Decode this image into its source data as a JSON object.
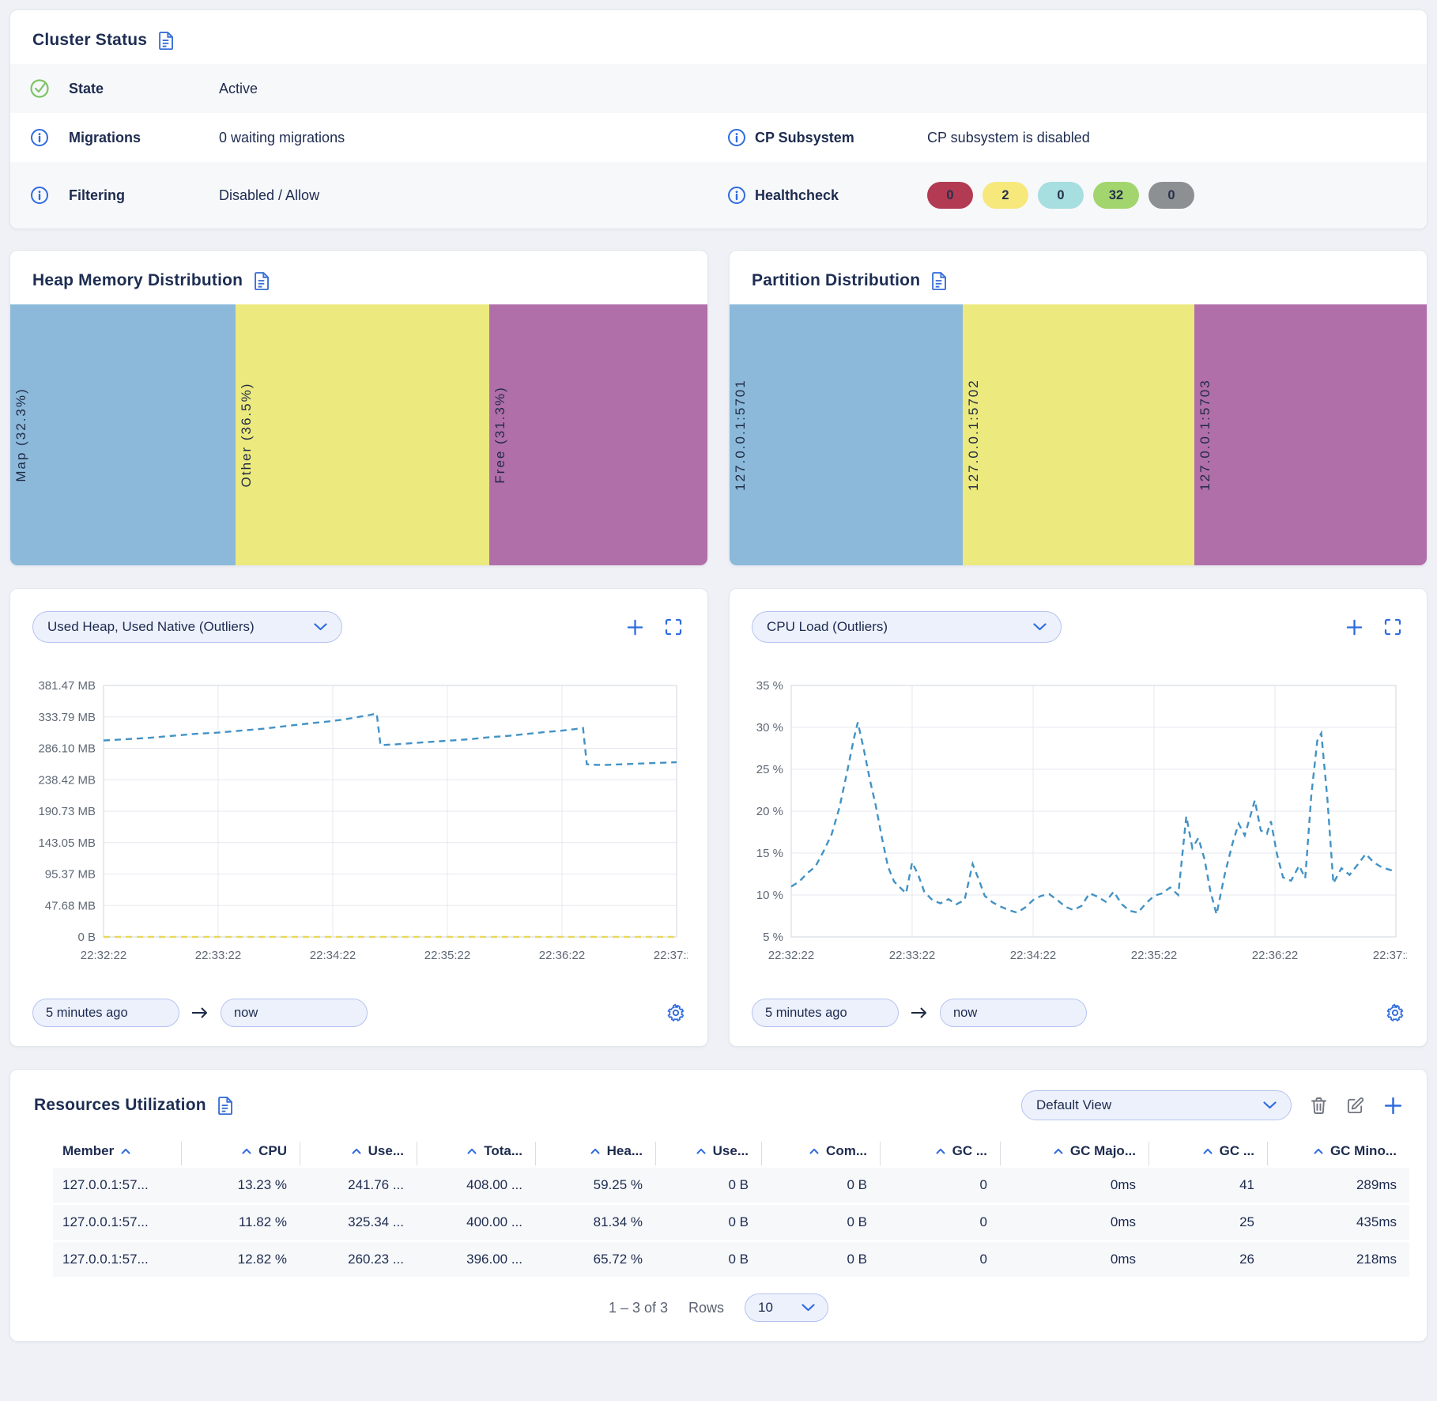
{
  "cluster_status": {
    "title": "Cluster Status",
    "state": {
      "label": "State",
      "value": "Active"
    },
    "migrations": {
      "label": "Migrations",
      "value": "0 waiting migrations"
    },
    "cp_subsystem": {
      "label": "CP Subsystem",
      "value": "CP subsystem is disabled"
    },
    "filtering": {
      "label": "Filtering",
      "value": "Disabled / Allow"
    },
    "healthcheck": {
      "label": "Healthcheck",
      "badges": [
        {
          "value": "0",
          "color": "#b23a53"
        },
        {
          "value": "2",
          "color": "#f6e87b"
        },
        {
          "value": "0",
          "color": "#a7dedf"
        },
        {
          "value": "32",
          "color": "#a3d56e"
        },
        {
          "value": "0",
          "color": "#8d9093"
        }
      ]
    }
  },
  "heap_distribution": {
    "title": "Heap Memory Distribution",
    "segments": [
      {
        "label": "Map (32.3%)",
        "pct": 32.3,
        "color": "#8cb9da"
      },
      {
        "label": "Other (36.5%)",
        "pct": 36.5,
        "color": "#ece97e"
      },
      {
        "label": "Free (31.3%)",
        "pct": 31.3,
        "color": "#b16fa9"
      }
    ]
  },
  "partition_distribution": {
    "title": "Partition Distribution",
    "segments": [
      {
        "label": "127.0.0.1:5701",
        "pct": 33.5,
        "color": "#8cb9da"
      },
      {
        "label": "127.0.0.1:5702",
        "pct": 33.2,
        "color": "#ece97e"
      },
      {
        "label": "127.0.0.1:5703",
        "pct": 33.3,
        "color": "#b16fa9"
      }
    ]
  },
  "charts": [
    {
      "selector": "Used Heap, Used Native (Outliers)",
      "from": "5 minutes ago",
      "to": "now",
      "y_ticks": [
        "381.47 MB",
        "333.79 MB",
        "286.10 MB",
        "238.42 MB",
        "190.73 MB",
        "143.05 MB",
        "95.37 MB",
        "47.68 MB",
        "0 B"
      ],
      "y_min": 0,
      "y_max": 381.47,
      "x_ticks": [
        "22:32:22",
        "22:33:22",
        "22:34:22",
        "22:35:22",
        "22:36:22",
        "22:37:22"
      ],
      "x_min": 0,
      "x_max": 300,
      "series": [
        {
          "name": "Used Heap",
          "color": "#4292c5",
          "points": [
            [
              0,
              298
            ],
            [
              12,
              300
            ],
            [
              24,
              302
            ],
            [
              36,
              305
            ],
            [
              48,
              308
            ],
            [
              60,
              310
            ],
            [
              72,
              313
            ],
            [
              84,
              316
            ],
            [
              96,
              320
            ],
            [
              108,
              324
            ],
            [
              118,
              327
            ],
            [
              126,
              330
            ],
            [
              134,
              334
            ],
            [
              140,
              337
            ],
            [
              143,
              339
            ],
            [
              145,
              291
            ],
            [
              152,
              292
            ],
            [
              162,
              294
            ],
            [
              172,
              296
            ],
            [
              182,
              298
            ],
            [
              192,
              300
            ],
            [
              202,
              303
            ],
            [
              212,
              305
            ],
            [
              222,
              308
            ],
            [
              232,
              311
            ],
            [
              240,
              313
            ],
            [
              246,
              315
            ],
            [
              251,
              317
            ],
            [
              253,
              262
            ],
            [
              258,
              261
            ],
            [
              264,
              261
            ],
            [
              272,
              262
            ],
            [
              280,
              263
            ],
            [
              290,
              264
            ],
            [
              300,
              265
            ]
          ]
        },
        {
          "name": "Used Native",
          "color": "#e8d95b",
          "points": [
            [
              0,
              0
            ],
            [
              300,
              0
            ]
          ]
        }
      ]
    },
    {
      "selector": "CPU Load (Outliers)",
      "from": "5 minutes ago",
      "to": "now",
      "y_ticks": [
        "35 %",
        "30 %",
        "25 %",
        "20 %",
        "15 %",
        "10 %",
        "5 %"
      ],
      "y_min": 5,
      "y_max": 35,
      "x_ticks": [
        "22:32:22",
        "22:33:22",
        "22:34:22",
        "22:35:22",
        "22:36:22",
        "22:37:22"
      ],
      "x_min": 0,
      "x_max": 300,
      "series": [
        {
          "name": "CPU Load",
          "color": "#4292c5",
          "points": [
            [
              0,
              11.0
            ],
            [
              4,
              11.6
            ],
            [
              8,
              12.6
            ],
            [
              12,
              13.4
            ],
            [
              16,
              15.2
            ],
            [
              20,
              17.2
            ],
            [
              24,
              20.5
            ],
            [
              28,
              25.0
            ],
            [
              31,
              28.6
            ],
            [
              33,
              30.6
            ],
            [
              36,
              27.4
            ],
            [
              39,
              23.8
            ],
            [
              42,
              20.6
            ],
            [
              45,
              16.8
            ],
            [
              48,
              13.4
            ],
            [
              51,
              11.6
            ],
            [
              54,
              10.9
            ],
            [
              57,
              10.2
            ],
            [
              60,
              13.9
            ],
            [
              63,
              12.4
            ],
            [
              66,
              10.4
            ],
            [
              70,
              9.4
            ],
            [
              74,
              9.0
            ],
            [
              78,
              9.5
            ],
            [
              82,
              8.9
            ],
            [
              86,
              9.4
            ],
            [
              90,
              13.7
            ],
            [
              93,
              11.9
            ],
            [
              96,
              9.9
            ],
            [
              100,
              9.1
            ],
            [
              104,
              8.6
            ],
            [
              108,
              8.2
            ],
            [
              112,
              7.9
            ],
            [
              116,
              8.5
            ],
            [
              120,
              9.4
            ],
            [
              124,
              9.9
            ],
            [
              128,
              10.1
            ],
            [
              132,
              9.4
            ],
            [
              136,
              8.6
            ],
            [
              140,
              8.2
            ],
            [
              144,
              8.7
            ],
            [
              148,
              10.2
            ],
            [
              152,
              9.8
            ],
            [
              156,
              9.2
            ],
            [
              160,
              10.4
            ],
            [
              164,
              8.9
            ],
            [
              168,
              8.1
            ],
            [
              172,
              7.9
            ],
            [
              176,
              9.0
            ],
            [
              180,
              9.9
            ],
            [
              184,
              10.2
            ],
            [
              188,
              10.9
            ],
            [
              192,
              10.0
            ],
            [
              196,
              19.4
            ],
            [
              199,
              15.6
            ],
            [
              202,
              16.8
            ],
            [
              205,
              14.3
            ],
            [
              208,
              10.4
            ],
            [
              211,
              7.7
            ],
            [
              215,
              12.4
            ],
            [
              219,
              16.2
            ],
            [
              222,
              18.5
            ],
            [
              225,
              17.1
            ],
            [
              228,
              19.6
            ],
            [
              230,
              21.3
            ],
            [
              233,
              17.7
            ],
            [
              236,
              17.3
            ],
            [
              238,
              18.8
            ],
            [
              241,
              14.9
            ],
            [
              244,
              12.1
            ],
            [
              248,
              11.7
            ],
            [
              252,
              13.5
            ],
            [
              255,
              12.0
            ],
            [
              258,
              21.8
            ],
            [
              261,
              28.4
            ],
            [
              263,
              29.3
            ],
            [
              266,
              21.5
            ],
            [
              269,
              11.4
            ],
            [
              273,
              13.2
            ],
            [
              277,
              12.4
            ],
            [
              281,
              13.6
            ],
            [
              285,
              14.9
            ],
            [
              289,
              13.9
            ],
            [
              293,
              13.3
            ],
            [
              297,
              13.0
            ],
            [
              300,
              12.8
            ]
          ]
        }
      ]
    }
  ],
  "resources": {
    "title": "Resources Utilization",
    "view_selector": "Default View",
    "columns": [
      {
        "label": "Member",
        "align": "left"
      },
      {
        "label": "CPU",
        "align": "right"
      },
      {
        "label": "Use...",
        "align": "right"
      },
      {
        "label": "Tota...",
        "align": "right"
      },
      {
        "label": "Hea...",
        "align": "right"
      },
      {
        "label": "Use...",
        "align": "right"
      },
      {
        "label": "Com...",
        "align": "right"
      },
      {
        "label": "GC ...",
        "align": "right"
      },
      {
        "label": "GC Majo...",
        "align": "right"
      },
      {
        "label": "GC ...",
        "align": "right"
      },
      {
        "label": "GC Mino...",
        "align": "right"
      }
    ],
    "rows": [
      [
        "127.0.0.1:57...",
        "13.23 %",
        "241.76 ...",
        "408.00 ...",
        "59.25 %",
        "0 B",
        "0 B",
        "0",
        "0ms",
        "41",
        "289ms"
      ],
      [
        "127.0.0.1:57...",
        "11.82 %",
        "325.34 ...",
        "400.00 ...",
        "81.34 %",
        "0 B",
        "0 B",
        "0",
        "0ms",
        "25",
        "435ms"
      ],
      [
        "127.0.0.1:57...",
        "12.82 %",
        "260.23 ...",
        "396.00 ...",
        "65.72 %",
        "0 B",
        "0 B",
        "0",
        "0ms",
        "26",
        "218ms"
      ]
    ],
    "pagination": {
      "range": "1 – 3 of 3",
      "rows_label": "Rows",
      "rows_per_page": "10"
    }
  }
}
